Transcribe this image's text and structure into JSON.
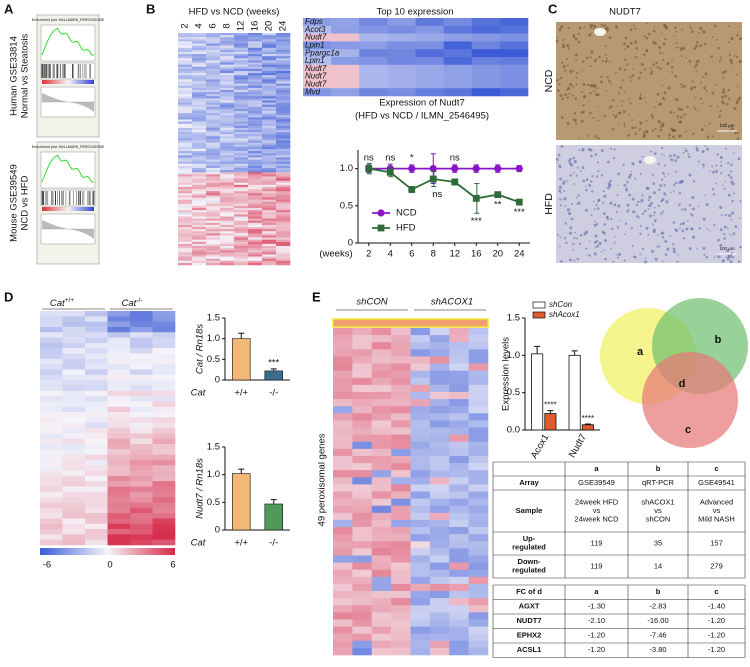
{
  "panels": {
    "a": "A",
    "b": "B",
    "c": "C",
    "d": "D",
    "e": "E"
  },
  "panel_a": {
    "plots": [
      {
        "dataset": "Human GSE33814",
        "comparison": "Normal vs Steatosis",
        "title": "Enrichment plot: HALLMARK_PEROXISOME"
      },
      {
        "dataset": "Mouse GSE39549",
        "comparison": "NCD vs HFD",
        "title": "Enrichment plot: HALLMARK_PEROXISOME"
      }
    ]
  },
  "panel_b": {
    "heatmap_title": "HFD vs NCD (weeks)",
    "weeks": [
      "2",
      "4",
      "6",
      "8",
      "12",
      "16",
      "20",
      "24"
    ],
    "top10_title": "Top 10 expression",
    "genes": [
      {
        "name": "Fdps",
        "color": "#141450"
      },
      {
        "name": "Acot3",
        "color": "#141450"
      },
      {
        "name": "Nudt7",
        "color": "#e0202a"
      },
      {
        "name": "Lpin1",
        "color": "#141450"
      },
      {
        "name": "Ppargc1a",
        "color": "#141450"
      },
      {
        "name": "Lpin1",
        "color": "#141450"
      },
      {
        "name": "Nudt7",
        "color": "#e0202a"
      },
      {
        "name": "Nudt7",
        "color": "#e0202a"
      },
      {
        "name": "Nudt7",
        "color": "#e0202a"
      },
      {
        "name": "Mvd",
        "color": "#141450"
      }
    ]
  },
  "panel_c": {
    "title": "NUDT7",
    "images": [
      {
        "label": "NCD",
        "scale": "100 µm"
      },
      {
        "label": "HFD",
        "scale": "100 µm"
      }
    ]
  },
  "panel_d": {
    "groups": [
      {
        "gene": "Cat",
        "genotype": "+/+"
      },
      {
        "gene": "Cat",
        "genotype": "-/-"
      }
    ],
    "colorbar": [
      -6,
      0,
      6
    ]
  },
  "panel_e": {
    "groups": [
      "shCON",
      "shACOX1"
    ],
    "row_label": "49 peroxisomal genes",
    "venn": [
      "a",
      "b",
      "c",
      "d"
    ],
    "table1": {
      "columns": [
        "a",
        "b",
        "c"
      ],
      "rows": [
        [
          [
            "Array"
          ],
          [
            "GSE39549"
          ],
          [
            "qRT-PCR"
          ],
          [
            "GSE49541"
          ]
        ],
        [
          [
            "Sample"
          ],
          [
            "24week HFD",
            "vs",
            "24week NCD"
          ],
          [
            "shACOX1",
            "vs",
            "shCON"
          ],
          [
            "Advanced",
            "vs",
            "Mild NASH"
          ]
        ],
        [
          [
            "Up-",
            "regulated"
          ],
          [
            119
          ],
          [
            35
          ],
          [
            157
          ]
        ],
        [
          [
            "Down-",
            "regulated"
          ],
          [
            119
          ],
          [
            14
          ],
          [
            279
          ]
        ]
      ]
    },
    "table2": {
      "corner": "FC of d",
      "columns": [
        "a",
        "b",
        "c"
      ],
      "rows": [
        [
          "AGXT",
          "-1.30",
          "-2.83",
          "-1.40"
        ],
        [
          "NUDT7",
          "-2.10",
          "-16.00",
          "-1.20"
        ],
        [
          "EPHX2",
          "-1.20",
          "-7.46",
          "-1.20"
        ],
        [
          "ACSL1",
          "-1.20",
          "-3.80",
          "-1.20"
        ]
      ]
    }
  },
  "chart_data": [
    {
      "type": "line",
      "title": "Expression of Nudt7",
      "subtitle": "(HFD vs NCD / ILMN_2546495)",
      "x_label": "(weeks)",
      "categories": [
        "2",
        "4",
        "6",
        "8",
        "12",
        "16",
        "20",
        "24"
      ],
      "ylim": [
        0,
        1.25
      ],
      "yticks": [
        0,
        0.5,
        {
          "value": 1,
          "label": "1.0"
        }
      ],
      "series": [
        {
          "name": "NCD",
          "color": "#8a14c8",
          "marker": "circle",
          "values": [
            1,
            1,
            1,
            1,
            1,
            1,
            1,
            1
          ],
          "errors": [
            0.05,
            0.06,
            0.05,
            0.2,
            0.05,
            0.05,
            0.05,
            0.04
          ]
        },
        {
          "name": "HFD",
          "color": "#2f6b3a",
          "marker": "square",
          "values": [
            1,
            0.95,
            0.72,
            0.86,
            0.82,
            0.6,
            0.65,
            0.55
          ],
          "errors": [
            0.07,
            0.06,
            0.04,
            0.1,
            0.04,
            0.2,
            0.03,
            0.03
          ]
        }
      ],
      "annotations": [
        "ns",
        "ns",
        "*",
        "ns",
        "ns",
        "***",
        "**",
        "***"
      ]
    },
    {
      "type": "bar",
      "y_label": "Cat / Rn18s",
      "x_label": "Cat",
      "categories": [
        "+/+",
        "-/-"
      ],
      "values": [
        1,
        0.22
      ],
      "errors": [
        0.13,
        0.05
      ],
      "colors": [
        "#f2b877",
        "#3b6d8c"
      ],
      "ylim": [
        0,
        1.5
      ],
      "yticks": [
        0,
        0.5,
        {
          "value": 1,
          "label": "1.0"
        },
        1.5
      ],
      "annotations": [
        null,
        "***"
      ]
    },
    {
      "type": "bar",
      "y_label": "Nudt7 / Rn18s",
      "x_label": "Cat",
      "categories": [
        "+/+",
        "-/-"
      ],
      "values": [
        1.02,
        0.47
      ],
      "errors": [
        0.08,
        0.08
      ],
      "colors": [
        "#f2b877",
        "#4f9a5a"
      ],
      "ylim": [
        0,
        1.5
      ],
      "yticks": [
        0,
        0.5,
        {
          "value": 1,
          "label": "1.0"
        },
        1.5
      ]
    },
    {
      "type": "bar",
      "y_label": "Expression levels",
      "categories": [
        "Acox1",
        "Nudt7"
      ],
      "ylim": [
        0,
        1.5
      ],
      "yticks": [
        {
          "value": 0,
          "label": "0.0"
        },
        0.5,
        {
          "value": 1,
          "label": "1.0"
        },
        1.5
      ],
      "series": [
        {
          "name": "shCon",
          "color": "#ffffff",
          "values": [
            1.02,
            1
          ],
          "errors": [
            0.1,
            0.06
          ]
        },
        {
          "name": "shAcox1",
          "color": "#e05a2b",
          "values": [
            0.22,
            0.07
          ],
          "errors": [
            0.04,
            0.01
          ],
          "annotations": [
            "****",
            "****"
          ]
        }
      ]
    }
  ]
}
